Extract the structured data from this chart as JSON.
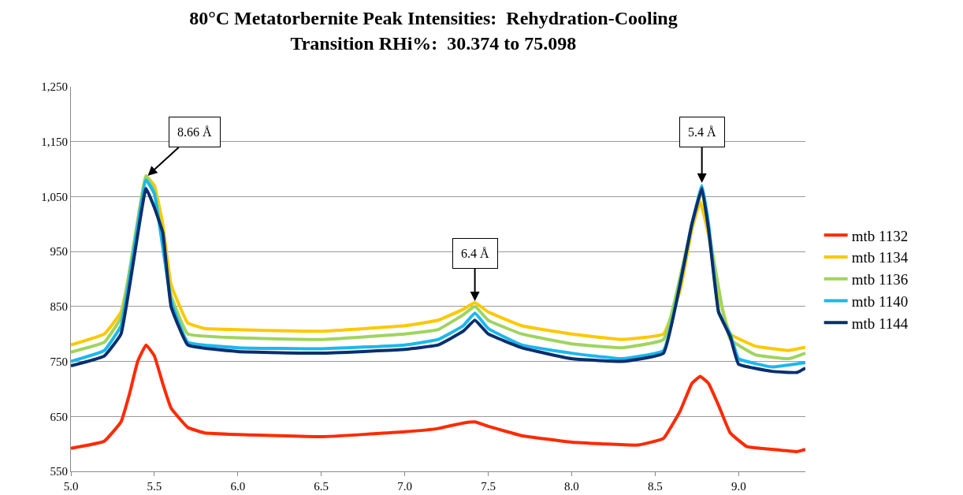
{
  "chart_data": {
    "type": "line",
    "title": "80°C Metatorbernite Peak Intensities:  Rehydration-Cooling",
    "subtitle": "Transition RHi%:  30.374 to 75.098",
    "series": [
      {
        "name": "mtb 1132",
        "color": "#ff2a00",
        "x": [
          5.0,
          5.2,
          5.3,
          5.35,
          5.4,
          5.45,
          5.5,
          5.55,
          5.6,
          5.7,
          5.8,
          6.0,
          6.5,
          7.0,
          7.2,
          7.35,
          7.42,
          7.5,
          7.7,
          8.0,
          8.4,
          8.55,
          8.65,
          8.72,
          8.77,
          8.82,
          8.88,
          8.95,
          9.05,
          9.2,
          9.35,
          9.4
        ],
        "values": [
          592,
          605,
          640,
          690,
          750,
          780,
          760,
          710,
          665,
          630,
          620,
          617,
          613,
          622,
          628,
          638,
          640,
          632,
          615,
          603,
          598,
          610,
          660,
          710,
          723,
          710,
          670,
          620,
          595,
          590,
          586,
          590
        ]
      },
      {
        "name": "mtb 1134",
        "color": "#ffc800",
        "x": [
          5.0,
          5.2,
          5.3,
          5.38,
          5.45,
          5.5,
          5.55,
          5.6,
          5.7,
          5.8,
          6.0,
          6.5,
          7.0,
          7.2,
          7.35,
          7.42,
          7.5,
          7.7,
          8.0,
          8.3,
          8.55,
          8.65,
          8.72,
          8.77,
          8.82,
          8.88,
          8.95,
          9.1,
          9.3,
          9.4
        ],
        "values": [
          780,
          800,
          840,
          960,
          1087,
          1070,
          1000,
          890,
          820,
          810,
          808,
          805,
          815,
          825,
          845,
          857,
          840,
          815,
          800,
          790,
          800,
          880,
          990,
          1040,
          980,
          870,
          800,
          778,
          770,
          776
        ]
      },
      {
        "name": "mtb 1136",
        "color": "#9fd45f",
        "x": [
          5.0,
          5.2,
          5.3,
          5.45,
          5.5,
          5.6,
          5.7,
          6.0,
          6.5,
          7.0,
          7.2,
          7.35,
          7.42,
          7.5,
          7.7,
          8.0,
          8.3,
          8.55,
          8.72,
          8.78,
          8.82,
          8.9,
          8.95,
          9.1,
          9.3,
          9.4
        ],
        "values": [
          767,
          785,
          830,
          1088,
          1060,
          870,
          800,
          793,
          790,
          800,
          808,
          835,
          850,
          825,
          800,
          782,
          775,
          790,
          1000,
          1060,
          990,
          850,
          790,
          762,
          755,
          765
        ]
      },
      {
        "name": "mtb 1140",
        "color": "#1ab8ee",
        "x": [
          5.0,
          5.2,
          5.3,
          5.45,
          5.5,
          5.6,
          5.7,
          6.0,
          6.5,
          7.0,
          7.2,
          7.35,
          7.42,
          7.5,
          7.7,
          8.0,
          8.3,
          8.55,
          8.72,
          8.78,
          8.82,
          8.88,
          8.95,
          9.0,
          9.2,
          9.4
        ],
        "values": [
          750,
          770,
          815,
          1080,
          1055,
          860,
          785,
          775,
          773,
          780,
          790,
          815,
          838,
          810,
          780,
          765,
          755,
          770,
          1000,
          1070,
          1000,
          840,
          800,
          755,
          740,
          748
        ]
      },
      {
        "name": "mtb 1144",
        "color": "#0a2f6e",
        "x": [
          5.0,
          5.2,
          5.3,
          5.45,
          5.5,
          5.55,
          5.6,
          5.7,
          6.0,
          6.5,
          7.0,
          7.2,
          7.35,
          7.42,
          7.5,
          7.7,
          8.0,
          8.3,
          8.55,
          8.72,
          8.78,
          8.82,
          8.88,
          8.95,
          9.0,
          9.2,
          9.35,
          9.4
        ],
        "values": [
          742,
          760,
          800,
          1065,
          1030,
          985,
          850,
          780,
          768,
          765,
          772,
          780,
          805,
          825,
          800,
          775,
          755,
          750,
          765,
          1000,
          1065,
          990,
          840,
          795,
          745,
          732,
          730,
          738
        ]
      }
    ],
    "annotations": [
      {
        "text": "8.66 Å",
        "x": 5.46,
        "y": 1088
      },
      {
        "text": "6.4 Å",
        "x": 7.42,
        "y": 860
      },
      {
        "text": "5.4 Å",
        "x": 8.78,
        "y": 1075
      }
    ],
    "xlim": [
      5.0,
      9.4
    ],
    "xticks": [
      {
        "value": 5,
        "label": "5.0"
      },
      5.5,
      {
        "value": 6,
        "label": "6.0"
      },
      6.5,
      {
        "value": 7,
        "label": "7.0"
      },
      7.5,
      {
        "value": 8,
        "label": "8.0"
      },
      8.5,
      {
        "value": 9,
        "label": "9.0"
      }
    ],
    "ylim": [
      550,
      1250
    ],
    "yticks": [
      550,
      650,
      750,
      850,
      950,
      {
        "value": 1050,
        "label": "1,050"
      },
      {
        "value": 1150,
        "label": "1,150"
      },
      {
        "value": 1250,
        "label": "1,250"
      }
    ],
    "grid": "y",
    "legend": "right",
    "marker": "none",
    "line_style": "solid"
  }
}
